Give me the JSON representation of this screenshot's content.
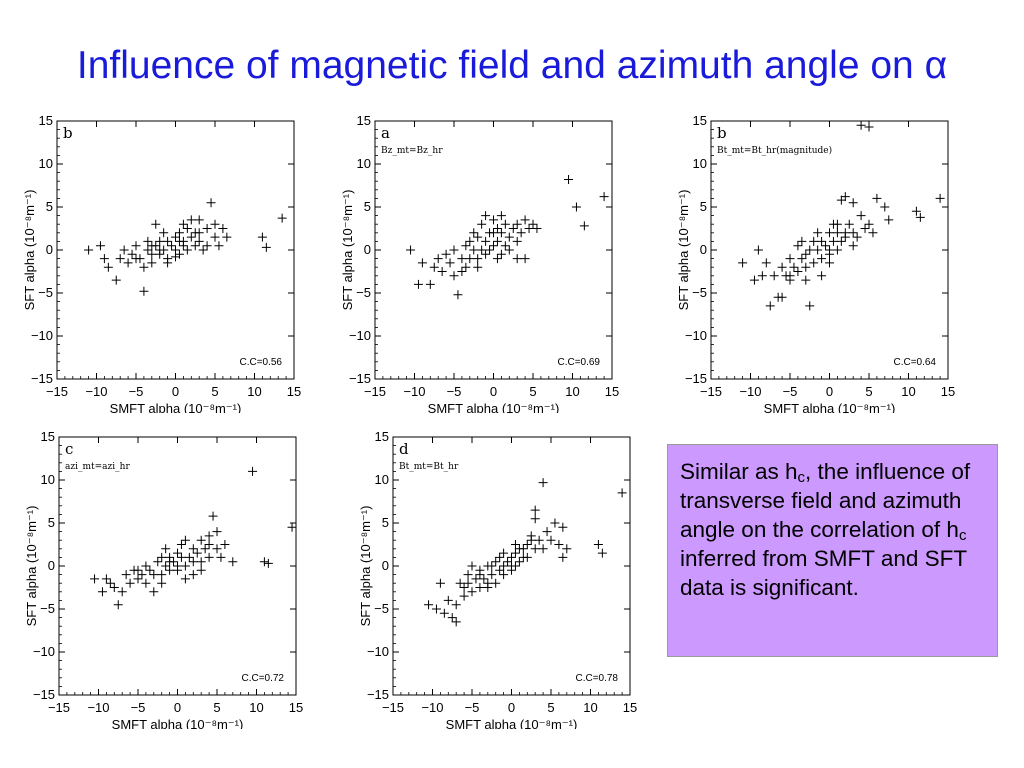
{
  "slide": {
    "title": "Influence of magnetic field and azimuth angle on α",
    "callout": {
      "part1": "Similar as h",
      "sub1": "c",
      "part2": ", the influence of transverse field and azimuth angle on the correlation of h",
      "sub2": "c",
      "part3": " inferred from SMFT and SFT data is significant."
    },
    "colors": {
      "title": "#1a1adb",
      "callout_bg": "#cc99ff",
      "marker": "#000000"
    }
  },
  "chart_data": [
    {
      "type": "scatter",
      "marker": "plus",
      "panel_label": "b",
      "subtitle": "",
      "xlabel": "SMFT alpha (10⁻⁸m⁻¹)",
      "ylabel": "SFT alpha (10⁻⁸m⁻¹)",
      "xlim": [
        -15,
        15
      ],
      "ylim": [
        -15,
        15
      ],
      "xticks": [
        -15,
        -10,
        -5,
        0,
        5,
        10,
        15
      ],
      "yticks": [
        -15,
        -10,
        -5,
        0,
        5,
        10,
        15
      ],
      "correlation_label": "C.C=0.56",
      "points": [
        [
          -11,
          0
        ],
        [
          -9.5,
          0.5
        ],
        [
          -9,
          -1
        ],
        [
          -8.5,
          -2
        ],
        [
          -7.5,
          -3.5
        ],
        [
          -7,
          -1
        ],
        [
          -6.5,
          0
        ],
        [
          -6,
          -1.5
        ],
        [
          -5.5,
          -0.5
        ],
        [
          -5,
          0.5
        ],
        [
          -4.5,
          -1
        ],
        [
          -4,
          -2
        ],
        [
          -3.5,
          1
        ],
        [
          -3.5,
          0
        ],
        [
          -3,
          -0.5
        ],
        [
          -3,
          -1.5
        ],
        [
          -2.5,
          3
        ],
        [
          -2.5,
          0.5
        ],
        [
          -2,
          -0.5
        ],
        [
          -2,
          1
        ],
        [
          -1.5,
          2
        ],
        [
          -1.5,
          0
        ],
        [
          -1,
          1
        ],
        [
          -1,
          -1
        ],
        [
          -0.5,
          0.5
        ],
        [
          0,
          1.5
        ],
        [
          0,
          0
        ],
        [
          0.5,
          -0.5
        ],
        [
          0.5,
          2
        ],
        [
          1,
          1
        ],
        [
          1,
          3
        ],
        [
          1.5,
          0
        ],
        [
          2,
          1.5
        ],
        [
          2,
          3.5
        ],
        [
          2.5,
          0.5
        ],
        [
          3,
          2
        ],
        [
          3,
          1
        ],
        [
          3.5,
          0
        ],
        [
          4,
          2.5
        ],
        [
          4.5,
          5.5
        ],
        [
          5,
          1.5
        ],
        [
          5,
          3
        ],
        [
          5.5,
          0.5
        ],
        [
          6,
          2.5
        ],
        [
          6.5,
          1.5
        ],
        [
          -4,
          -4.8
        ],
        [
          11,
          1.5
        ],
        [
          11.5,
          0.3
        ],
        [
          13.5,
          3.7
        ],
        [
          -1,
          -1.5
        ],
        [
          0,
          -0.8
        ],
        [
          1.5,
          2.5
        ],
        [
          3,
          3.5
        ],
        [
          -2,
          0
        ],
        [
          -5,
          -1
        ],
        [
          0.5,
          1
        ],
        [
          2.5,
          2
        ],
        [
          4,
          0.5
        ],
        [
          -3,
          0.5
        ],
        [
          1,
          0.5
        ]
      ]
    },
    {
      "type": "scatter",
      "marker": "plus",
      "panel_label": "a",
      "subtitle": "Bz_mt=Bz_hr",
      "xlabel": "SMFT alpha (10⁻⁸m⁻¹)",
      "ylabel": "SFT alpha (10⁻⁸m⁻¹)",
      "xlim": [
        -15,
        15
      ],
      "ylim": [
        -15,
        15
      ],
      "xticks": [
        -15,
        -10,
        -5,
        0,
        5,
        10,
        15
      ],
      "yticks": [
        -15,
        -10,
        -5,
        0,
        5,
        10,
        15
      ],
      "correlation_label": "C.C=0.69",
      "points": [
        [
          -10.5,
          0
        ],
        [
          -9.5,
          -4
        ],
        [
          -9,
          -1.5
        ],
        [
          -8,
          -4
        ],
        [
          -7.5,
          -2
        ],
        [
          -7,
          -1
        ],
        [
          -6.5,
          -2.5
        ],
        [
          -6,
          -0.5
        ],
        [
          -5.5,
          -1.5
        ],
        [
          -5,
          -3
        ],
        [
          -5,
          0
        ],
        [
          -4.5,
          -5.2
        ],
        [
          -4,
          -1
        ],
        [
          -3.5,
          -2
        ],
        [
          -3.5,
          0.5
        ],
        [
          -3,
          -1
        ],
        [
          -3,
          1
        ],
        [
          -2.5,
          0
        ],
        [
          -2.5,
          2
        ],
        [
          -2,
          -1
        ],
        [
          -2,
          1.5
        ],
        [
          -1.5,
          0
        ],
        [
          -1.5,
          3
        ],
        [
          -1,
          1
        ],
        [
          -1,
          -0.5
        ],
        [
          -0.5,
          2
        ],
        [
          0,
          0.5
        ],
        [
          0,
          3.5
        ],
        [
          0.5,
          1
        ],
        [
          0.5,
          -1
        ],
        [
          1,
          2
        ],
        [
          1,
          4
        ],
        [
          1.5,
          0.5
        ],
        [
          1.5,
          3
        ],
        [
          2,
          1.5
        ],
        [
          2.5,
          2.5
        ],
        [
          3,
          1
        ],
        [
          3,
          3
        ],
        [
          3.5,
          2
        ],
        [
          4,
          3.5
        ],
        [
          4.5,
          2.5
        ],
        [
          5,
          3
        ],
        [
          5.5,
          2.5
        ],
        [
          9.5,
          8.2
        ],
        [
          10.5,
          5
        ],
        [
          11.5,
          2.8
        ],
        [
          14,
          6.2
        ],
        [
          -1,
          4
        ],
        [
          0,
          2
        ],
        [
          1,
          -0.5
        ],
        [
          -2,
          -2
        ],
        [
          2,
          0
        ],
        [
          -4,
          -2.5
        ],
        [
          0.5,
          2.5
        ],
        [
          -0.5,
          0
        ],
        [
          3,
          -1
        ],
        [
          4,
          -1
        ]
      ]
    },
    {
      "type": "scatter",
      "marker": "plus",
      "panel_label": "b",
      "subtitle": "Bt_mt=Bt_hr(magnitude)",
      "xlabel": "SMFT alpha (10⁻⁸m⁻¹)",
      "ylabel": "SFT alpha (10⁻⁸m⁻¹)",
      "xlim": [
        -15,
        15
      ],
      "ylim": [
        -15,
        15
      ],
      "xticks": [
        -15,
        -10,
        -5,
        0,
        5,
        10,
        15
      ],
      "yticks": [
        -15,
        -10,
        -5,
        0,
        5,
        10,
        15
      ],
      "correlation_label": "C.C=0.64",
      "points": [
        [
          -11,
          -1.5
        ],
        [
          -9.5,
          -3.5
        ],
        [
          -9,
          0
        ],
        [
          -8.5,
          -3
        ],
        [
          -8,
          -1.5
        ],
        [
          -7.5,
          -6.5
        ],
        [
          -7,
          -3
        ],
        [
          -6.5,
          -5.5
        ],
        [
          -6,
          -2
        ],
        [
          -6,
          -5.5
        ],
        [
          -5.5,
          -3
        ],
        [
          -5,
          -1
        ],
        [
          -5,
          -3.5
        ],
        [
          -4.5,
          -2
        ],
        [
          -4,
          0.5
        ],
        [
          -4,
          -2.5
        ],
        [
          -3.5,
          -1
        ],
        [
          -3.5,
          1
        ],
        [
          -3,
          -0.5
        ],
        [
          -3,
          -2
        ],
        [
          -2.5,
          0
        ],
        [
          -2.5,
          -6.5
        ],
        [
          -2,
          1
        ],
        [
          -2,
          -1.5
        ],
        [
          -1.5,
          2
        ],
        [
          -1.5,
          0
        ],
        [
          -1,
          -1
        ],
        [
          -1,
          1
        ],
        [
          -0.5,
          0.5
        ],
        [
          0,
          2
        ],
        [
          0,
          -0.5
        ],
        [
          0.5,
          1
        ],
        [
          0.5,
          3
        ],
        [
          1,
          0
        ],
        [
          1,
          2
        ],
        [
          1.5,
          1
        ],
        [
          1.5,
          5.8
        ],
        [
          2,
          1.5
        ],
        [
          2,
          6.2
        ],
        [
          2.5,
          3
        ],
        [
          3,
          2
        ],
        [
          3,
          5.5
        ],
        [
          3.5,
          1.5
        ],
        [
          4,
          4
        ],
        [
          4.5,
          2.5
        ],
        [
          5,
          3
        ],
        [
          5.5,
          2
        ],
        [
          6,
          6
        ],
        [
          7,
          5
        ],
        [
          7.5,
          3.5
        ],
        [
          4,
          14.5
        ],
        [
          5,
          14.3
        ],
        [
          11,
          4.5
        ],
        [
          11.5,
          3.8
        ],
        [
          14,
          6
        ],
        [
          -1,
          -3
        ],
        [
          0,
          -1.5
        ],
        [
          1,
          3
        ],
        [
          2,
          2
        ],
        [
          -3,
          -3.5
        ],
        [
          3,
          0.5
        ],
        [
          -5,
          -3
        ],
        [
          0,
          0
        ]
      ]
    },
    {
      "type": "scatter",
      "marker": "plus",
      "panel_label": "c",
      "subtitle": "azi_mt=azi_hr",
      "xlabel": "SMFT alpha (10⁻⁸m⁻¹)",
      "ylabel": "SFT alpha (10⁻⁸m⁻¹)",
      "xlim": [
        -15,
        15
      ],
      "ylim": [
        -15,
        15
      ],
      "xticks": [
        -15,
        -10,
        -5,
        0,
        5,
        10,
        15
      ],
      "yticks": [
        -15,
        -10,
        -5,
        0,
        5,
        10,
        15
      ],
      "correlation_label": "C.C=0.72",
      "points": [
        [
          -10.5,
          -1.5
        ],
        [
          -9.5,
          -3
        ],
        [
          -9,
          -1.5
        ],
        [
          -8.5,
          -2
        ],
        [
          -8,
          -2.5
        ],
        [
          -7.5,
          -4.5
        ],
        [
          -7,
          -3
        ],
        [
          -6.5,
          -1
        ],
        [
          -6,
          -2
        ],
        [
          -5.5,
          -0.5
        ],
        [
          -5,
          -1.5
        ],
        [
          -4.5,
          -1
        ],
        [
          -4,
          0
        ],
        [
          -4,
          -2
        ],
        [
          -3.5,
          -0.5
        ],
        [
          -3,
          -1
        ],
        [
          -3,
          -3
        ],
        [
          -2.5,
          0.5
        ],
        [
          -2,
          -1
        ],
        [
          -2,
          1
        ],
        [
          -1.5,
          0
        ],
        [
          -1.5,
          2
        ],
        [
          -1,
          -0.5
        ],
        [
          -1,
          1
        ],
        [
          -0.5,
          0.5
        ],
        [
          0,
          1.5
        ],
        [
          0,
          -0.5
        ],
        [
          0.5,
          1
        ],
        [
          0.5,
          2.5
        ],
        [
          1,
          0
        ],
        [
          1,
          3
        ],
        [
          1.5,
          1
        ],
        [
          2,
          2
        ],
        [
          2,
          -1
        ],
        [
          2.5,
          1.5
        ],
        [
          3,
          3
        ],
        [
          3,
          0.5
        ],
        [
          3.5,
          2
        ],
        [
          4,
          1
        ],
        [
          4,
          3.5
        ],
        [
          4.5,
          5.8
        ],
        [
          5,
          2
        ],
        [
          5,
          4
        ],
        [
          5.5,
          1
        ],
        [
          6,
          2.5
        ],
        [
          7,
          0.5
        ],
        [
          9.5,
          11
        ],
        [
          11,
          0.5
        ],
        [
          11.5,
          0.3
        ],
        [
          14.5,
          4.5
        ],
        [
          -2,
          -2
        ],
        [
          0,
          0
        ],
        [
          1,
          -1.5
        ],
        [
          3,
          -0.5
        ],
        [
          -1,
          0.5
        ],
        [
          2,
          0.5
        ],
        [
          4,
          2.5
        ],
        [
          -5,
          -0.5
        ]
      ]
    },
    {
      "type": "scatter",
      "marker": "plus",
      "panel_label": "d",
      "subtitle": "Bt_mt=Bt_hr",
      "xlabel": "SMFT alpha (10⁻⁸m⁻¹)",
      "ylabel": "SFT alpha (10⁻⁸m⁻¹)",
      "xlim": [
        -15,
        15
      ],
      "ylim": [
        -15,
        15
      ],
      "xticks": [
        -15,
        -10,
        -5,
        0,
        5,
        10,
        15
      ],
      "yticks": [
        -15,
        -10,
        -5,
        0,
        5,
        10,
        15
      ],
      "correlation_label": "C.C=0.78",
      "points": [
        [
          -10.5,
          -4.5
        ],
        [
          -9.5,
          -5
        ],
        [
          -9,
          -2
        ],
        [
          -8.5,
          -5.5
        ],
        [
          -8,
          -4
        ],
        [
          -7.5,
          -6
        ],
        [
          -7,
          -6.5
        ],
        [
          -7,
          -4.5
        ],
        [
          -6.5,
          -2
        ],
        [
          -6,
          -3.5
        ],
        [
          -5.5,
          -1
        ],
        [
          -5.5,
          -2
        ],
        [
          -5,
          -3
        ],
        [
          -5,
          0
        ],
        [
          -4.5,
          -1.5
        ],
        [
          -4,
          -2.5
        ],
        [
          -4,
          -0.5
        ],
        [
          -3.5,
          -1.5
        ],
        [
          -3,
          -2
        ],
        [
          -3,
          0
        ],
        [
          -2.5,
          -1
        ],
        [
          -2,
          -2
        ],
        [
          -2,
          0.5
        ],
        [
          -1.5,
          -0.5
        ],
        [
          -1.5,
          1
        ],
        [
          -1,
          0
        ],
        [
          -1,
          -1
        ],
        [
          -0.5,
          0.5
        ],
        [
          0,
          1
        ],
        [
          0,
          -0.5
        ],
        [
          0.5,
          1.5
        ],
        [
          0.5,
          0
        ],
        [
          1,
          2
        ],
        [
          1,
          0.5
        ],
        [
          1.5,
          1
        ],
        [
          2,
          2.5
        ],
        [
          2,
          1
        ],
        [
          2.5,
          3
        ],
        [
          3,
          2
        ],
        [
          3,
          5.5
        ],
        [
          3.5,
          3
        ],
        [
          4,
          2
        ],
        [
          4,
          9.7
        ],
        [
          4.5,
          4
        ],
        [
          5,
          3
        ],
        [
          5.5,
          5
        ],
        [
          6,
          2.5
        ],
        [
          6.5,
          4.5
        ],
        [
          6.5,
          1
        ],
        [
          7,
          2
        ],
        [
          11,
          2.5
        ],
        [
          11.5,
          1.5
        ],
        [
          14,
          8.5
        ],
        [
          -6,
          -2.5
        ],
        [
          -4,
          -1
        ],
        [
          -2.5,
          0
        ],
        [
          -1,
          1.5
        ],
        [
          0.5,
          2.5
        ],
        [
          1.5,
          2
        ],
        [
          2.5,
          3.5
        ],
        [
          3,
          6.5
        ],
        [
          -3,
          -2.5
        ],
        [
          0,
          0
        ]
      ]
    }
  ]
}
